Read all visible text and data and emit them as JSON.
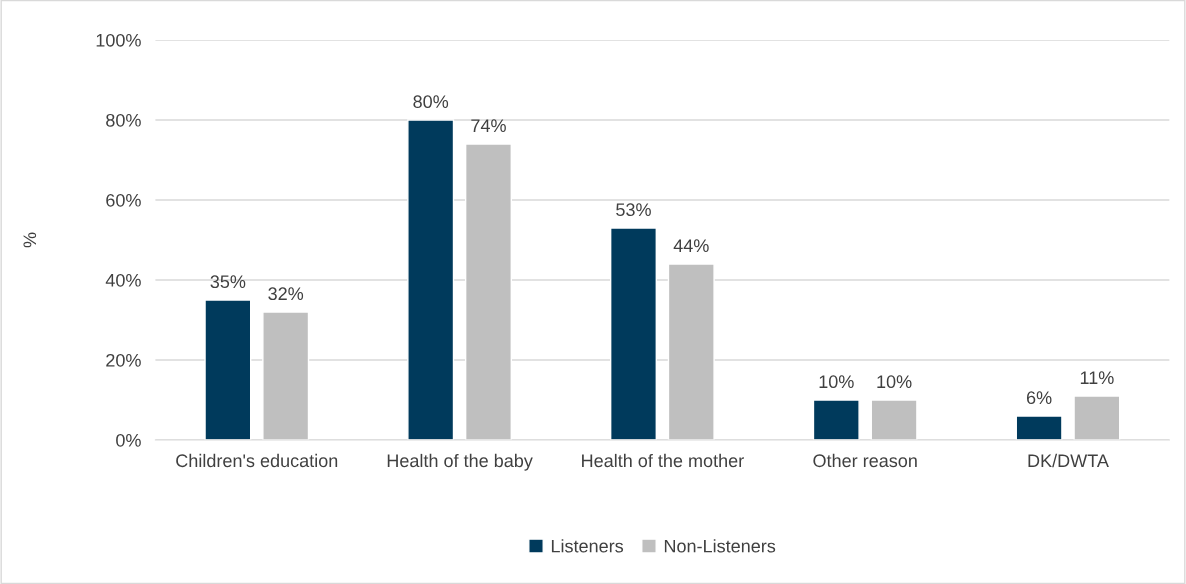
{
  "chart_data": {
    "type": "bar",
    "ylabel": "%",
    "categories": [
      "Children's education",
      "Health of the baby",
      "Health of the mother",
      "Other reason",
      "DK/DWTA"
    ],
    "series": [
      {
        "name": "Listeners",
        "color": "#003a5c",
        "values": [
          35,
          80,
          53,
          10,
          6
        ],
        "value_labels": [
          "35%",
          "80%",
          "53%",
          "10%",
          "6%"
        ]
      },
      {
        "name": "Non-Listeners",
        "color": "#bfbfbf",
        "values": [
          32,
          74,
          44,
          10,
          11
        ],
        "value_labels": [
          "32%",
          "74%",
          "44%",
          "10%",
          "11%"
        ]
      }
    ],
    "ylim": [
      0,
      100
    ],
    "yticks": [
      {
        "value": 0,
        "label": "0%"
      },
      {
        "value": 20,
        "label": "20%"
      },
      {
        "value": 40,
        "label": "40%"
      },
      {
        "value": 60,
        "label": "60%"
      },
      {
        "value": 80,
        "label": "80%"
      },
      {
        "value": 100,
        "label": "100%"
      }
    ],
    "grid": "y",
    "legend": "bottom"
  }
}
